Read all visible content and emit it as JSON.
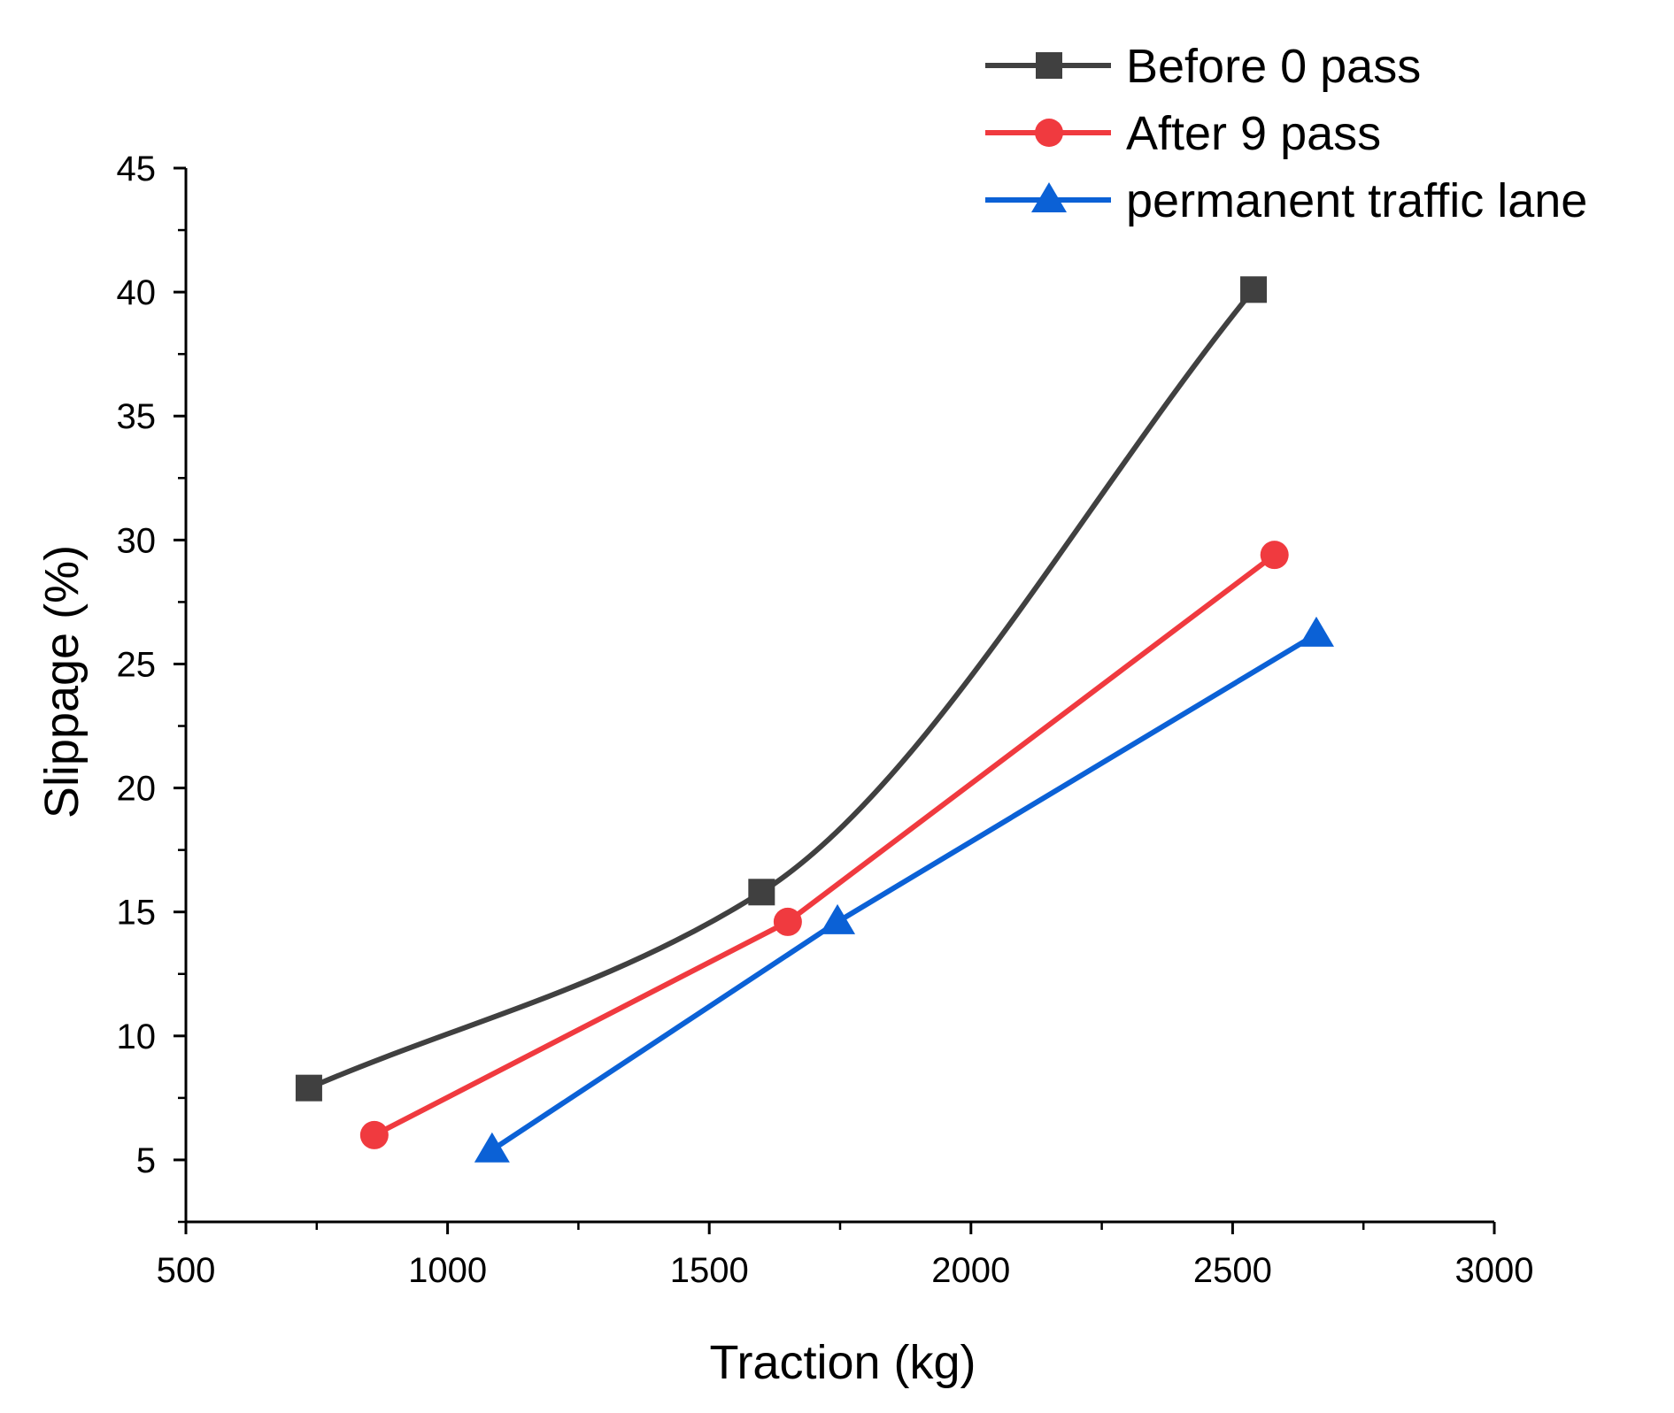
{
  "chart_data": {
    "type": "line",
    "title": "",
    "xlabel": "Traction (kg)",
    "ylabel": "Slippage (%)",
    "xlim": [
      500,
      3000
    ],
    "ylim": [
      2.5,
      45
    ],
    "xticks": [
      500,
      1000,
      1500,
      2000,
      2500,
      3000
    ],
    "yticks": [
      5,
      10,
      15,
      20,
      25,
      30,
      35,
      40,
      45
    ],
    "xtick_labels": [
      "500",
      "1000",
      "1500",
      "2000",
      "2500",
      "3000"
    ],
    "ytick_labels": [
      "5",
      "10",
      "15",
      "20",
      "25",
      "30",
      "35",
      "40",
      "45"
    ],
    "legend_position": "top-right",
    "grid": false,
    "series": [
      {
        "name": "Before 0 pass",
        "color": "#404040",
        "marker": "square",
        "smooth": true,
        "x": [
          735,
          1600,
          2540
        ],
        "y": [
          7.9,
          15.8,
          40.1
        ]
      },
      {
        "name": "After 9 pass",
        "color": "#f03a3f",
        "marker": "circle",
        "smooth": false,
        "x": [
          860,
          1650,
          2580
        ],
        "y": [
          6.0,
          14.6,
          29.4
        ]
      },
      {
        "name": "permanent traffic lane",
        "color": "#0b61d6",
        "marker": "triangle",
        "smooth": false,
        "x": [
          1085,
          1745,
          2660
        ],
        "y": [
          5.4,
          14.6,
          26.2
        ]
      }
    ]
  }
}
